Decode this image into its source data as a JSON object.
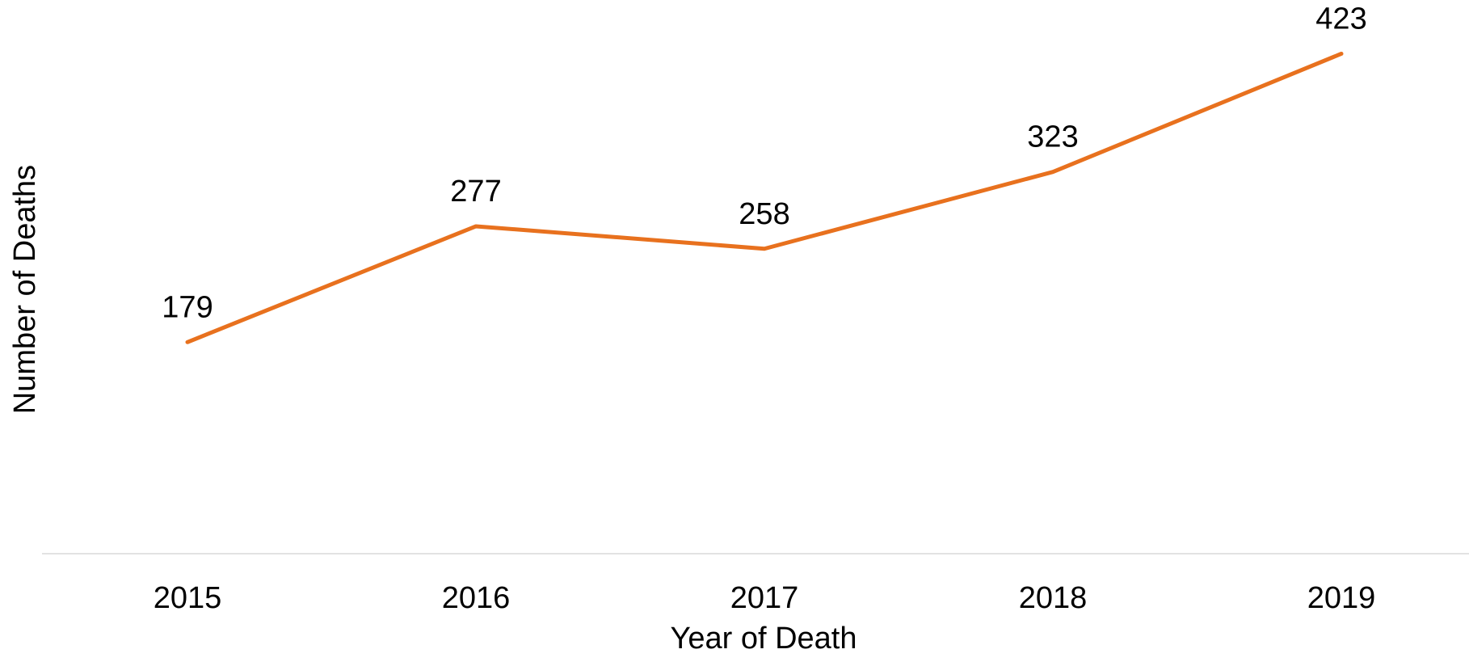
{
  "chart_data": {
    "type": "line",
    "x_label": "Year of Death",
    "y_label": "Number of Deaths",
    "categories": [
      "2015",
      "2016",
      "2017",
      "2018",
      "2019"
    ],
    "series": [
      {
        "name": "Number of Deaths",
        "color": "#e8711e",
        "values": [
          179,
          277,
          258,
          323,
          423
        ]
      }
    ],
    "ylim": [
      0,
      450
    ]
  }
}
